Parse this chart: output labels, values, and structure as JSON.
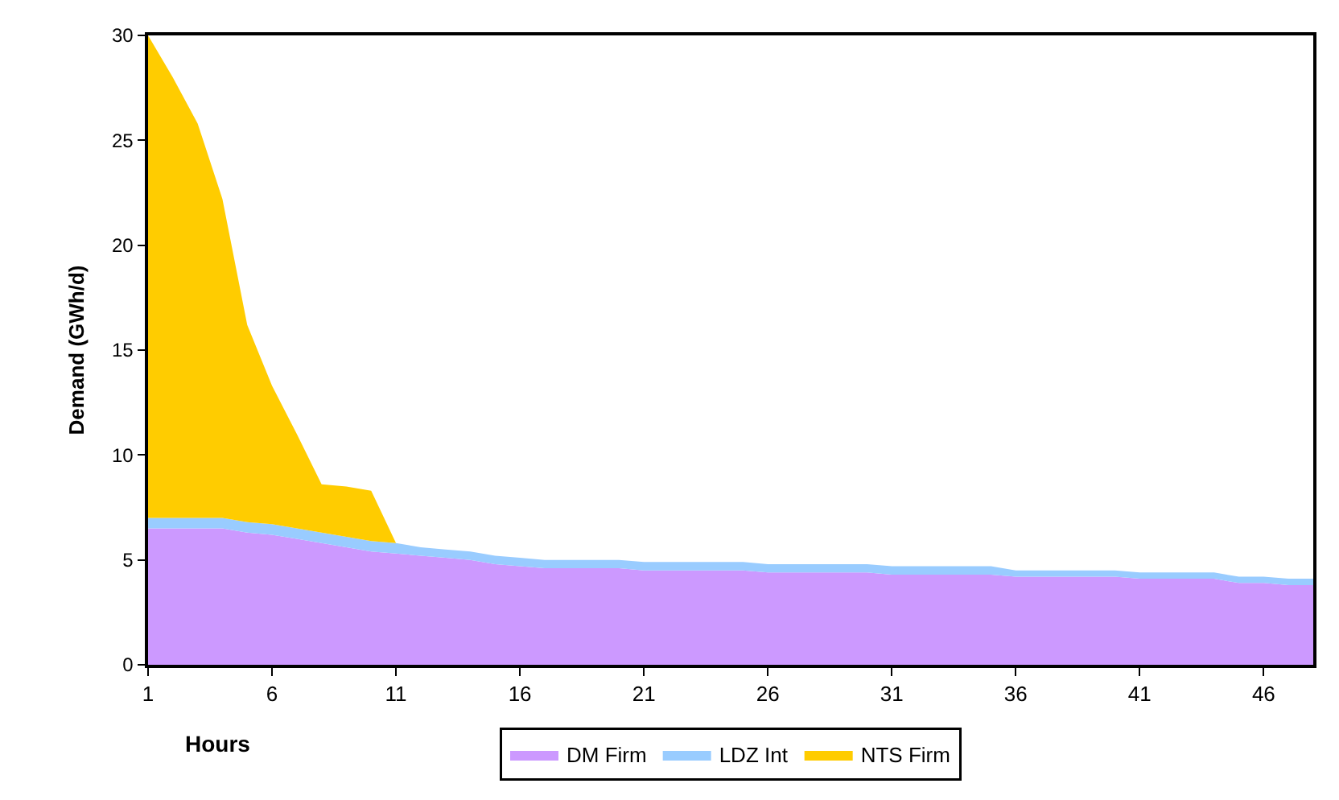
{
  "chart_data": {
    "type": "area",
    "stacked": true,
    "xlabel": "Hours",
    "ylabel": "Demand (GWh/d)",
    "x": [
      1,
      2,
      3,
      4,
      5,
      6,
      7,
      8,
      9,
      10,
      11,
      12,
      13,
      14,
      15,
      16,
      17,
      18,
      19,
      20,
      21,
      22,
      23,
      24,
      25,
      26,
      27,
      28,
      29,
      30,
      31,
      32,
      33,
      34,
      35,
      36,
      37,
      38,
      39,
      40,
      41,
      42,
      43,
      44,
      45,
      46,
      47,
      48
    ],
    "xlim": [
      1,
      48
    ],
    "xticks": [
      1,
      6,
      11,
      16,
      21,
      26,
      31,
      36,
      41,
      46
    ],
    "ylim": [
      0,
      30
    ],
    "yticks": [
      0,
      5,
      10,
      15,
      20,
      25,
      30
    ],
    "grid": false,
    "legend": "bottom",
    "marker": "none",
    "series": [
      {
        "name": "DM Firm",
        "color": "#cc99ff",
        "values": [
          6.5,
          6.5,
          6.5,
          6.5,
          6.3,
          6.2,
          6.0,
          5.8,
          5.6,
          5.4,
          5.3,
          5.2,
          5.1,
          5.0,
          4.8,
          4.7,
          4.6,
          4.6,
          4.6,
          4.6,
          4.5,
          4.5,
          4.5,
          4.5,
          4.5,
          4.4,
          4.4,
          4.4,
          4.4,
          4.4,
          4.3,
          4.3,
          4.3,
          4.3,
          4.3,
          4.2,
          4.2,
          4.2,
          4.2,
          4.2,
          4.1,
          4.1,
          4.1,
          4.1,
          3.9,
          3.9,
          3.8,
          3.8
        ]
      },
      {
        "name": "LDZ Int",
        "color": "#99ccff",
        "values": [
          0.5,
          0.5,
          0.5,
          0.5,
          0.5,
          0.5,
          0.5,
          0.5,
          0.5,
          0.5,
          0.5,
          0.4,
          0.4,
          0.4,
          0.4,
          0.4,
          0.4,
          0.4,
          0.4,
          0.4,
          0.4,
          0.4,
          0.4,
          0.4,
          0.4,
          0.4,
          0.4,
          0.4,
          0.4,
          0.4,
          0.4,
          0.4,
          0.4,
          0.4,
          0.4,
          0.3,
          0.3,
          0.3,
          0.3,
          0.3,
          0.3,
          0.3,
          0.3,
          0.3,
          0.3,
          0.3,
          0.3,
          0.3
        ]
      },
      {
        "name": "NTS Firm",
        "color": "#ffcc00",
        "values": [
          23,
          21,
          18.8,
          15.2,
          9.4,
          6.6,
          4.5,
          2.3,
          2.4,
          2.4,
          0,
          0,
          0,
          0,
          0,
          0,
          0,
          0,
          0,
          0,
          0,
          0,
          0,
          0,
          0,
          0,
          0,
          0,
          0,
          0,
          0,
          0,
          0,
          0,
          0,
          0,
          0,
          0,
          0,
          0,
          0,
          0,
          0,
          0,
          0,
          0,
          0,
          0
        ]
      }
    ]
  }
}
